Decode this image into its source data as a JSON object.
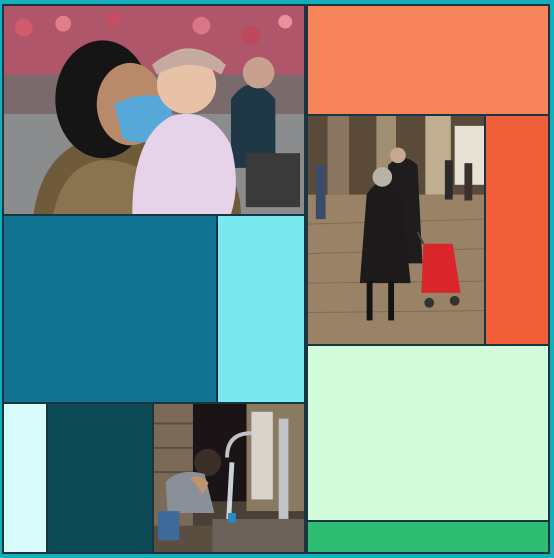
{
  "colors": {
    "frame_border": "#15aebd",
    "grid_line": "#1a3440",
    "teal_block": "#0e7290",
    "light_cyan_block": "#7ae8ef",
    "salmon_block": "#f7845b",
    "orange_red_block": "#f15e3a",
    "pale_mint_block": "#d2fbdc",
    "green_block": "#2fbd74",
    "pale_cyan_block": "#d8fbfb",
    "dark_teal_block": "#0b4a54"
  },
  "photos": [
    {
      "subject": "woman-wearing-mask-holding-toddler-in-crowd"
    },
    {
      "subject": "elderly-couple-walking-cobblestone-street-with-red-cart"
    },
    {
      "subject": "boy-washing-face-at-outdoor-water-tap"
    }
  ]
}
